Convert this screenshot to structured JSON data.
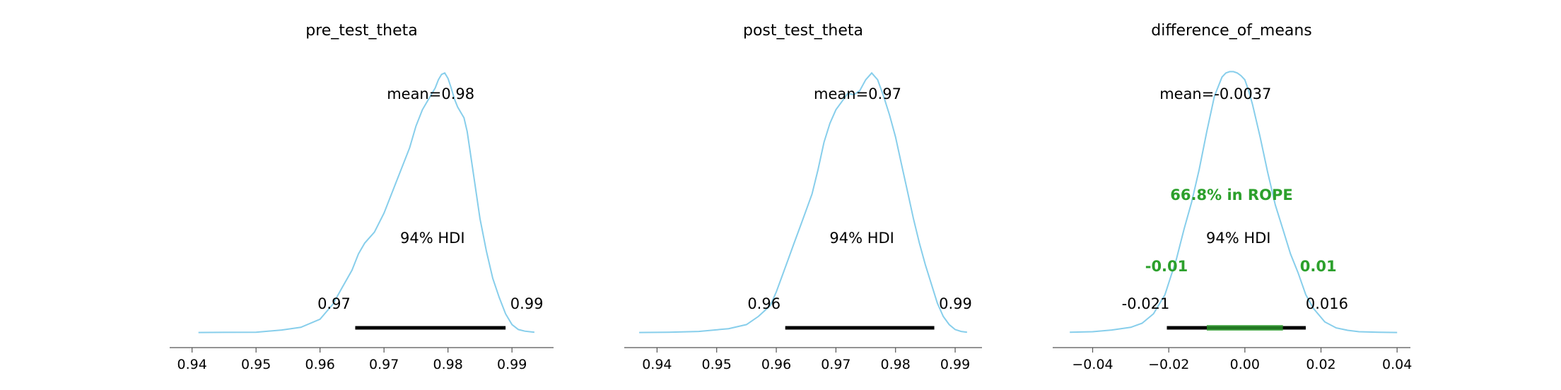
{
  "chart_data": [
    {
      "type": "area",
      "title": "pre_test_theta",
      "xlim": [
        0.9365,
        0.9965
      ],
      "ticks": [
        0.94,
        0.95,
        0.96,
        0.97,
        0.98,
        0.99
      ],
      "tick_labels": [
        "0.94",
        "0.95",
        "0.96",
        "0.97",
        "0.98",
        "0.99"
      ],
      "density": {
        "x": [
          0.941,
          0.945,
          0.95,
          0.954,
          0.957,
          0.96,
          0.962,
          0.9635,
          0.965,
          0.966,
          0.967,
          0.9685,
          0.97,
          0.972,
          0.974,
          0.975,
          0.976,
          0.977,
          0.978,
          0.9785,
          0.979,
          0.9795,
          0.98,
          0.9805,
          0.981,
          0.9815,
          0.982,
          0.9825,
          0.983,
          0.984,
          0.985,
          0.986,
          0.987,
          0.988,
          0.989,
          0.99,
          0.991,
          0.992,
          0.9935
        ],
        "y": [
          0.001,
          0.0015,
          0.002,
          0.01,
          0.02,
          0.05,
          0.105,
          0.168,
          0.23,
          0.29,
          0.33,
          0.37,
          0.44,
          0.56,
          0.68,
          0.76,
          0.82,
          0.86,
          0.9,
          0.93,
          0.95,
          0.955,
          0.935,
          0.9,
          0.86,
          0.83,
          0.81,
          0.79,
          0.74,
          0.58,
          0.42,
          0.3,
          0.2,
          0.13,
          0.07,
          0.03,
          0.012,
          0.006,
          0.002
        ]
      },
      "mean_label": "mean=0.98",
      "hdi_label": "94% HDI",
      "hdi": [
        0.9655,
        0.989
      ],
      "hdi_low_label": "0.97",
      "hdi_high_label": "0.99"
    },
    {
      "type": "area",
      "title": "post_test_theta",
      "xlim": [
        0.9345,
        0.9945
      ],
      "ticks": [
        0.94,
        0.95,
        0.96,
        0.97,
        0.98,
        0.99
      ],
      "tick_labels": [
        "0.94",
        "0.95",
        "0.96",
        "0.97",
        "0.98",
        "0.99"
      ],
      "density": {
        "x": [
          0.937,
          0.942,
          0.947,
          0.952,
          0.955,
          0.957,
          0.959,
          0.96,
          0.961,
          0.962,
          0.963,
          0.964,
          0.965,
          0.966,
          0.967,
          0.968,
          0.969,
          0.97,
          0.971,
          0.972,
          0.973,
          0.974,
          0.975,
          0.976,
          0.977,
          0.978,
          0.979,
          0.98,
          0.981,
          0.982,
          0.983,
          0.984,
          0.985,
          0.986,
          0.987,
          0.988,
          0.989,
          0.99,
          0.991,
          0.992
        ],
        "y": [
          0.001,
          0.002,
          0.005,
          0.015,
          0.03,
          0.06,
          0.1,
          0.15,
          0.21,
          0.27,
          0.33,
          0.39,
          0.45,
          0.51,
          0.6,
          0.7,
          0.77,
          0.82,
          0.85,
          0.88,
          0.875,
          0.89,
          0.93,
          0.955,
          0.93,
          0.87,
          0.8,
          0.72,
          0.62,
          0.52,
          0.42,
          0.33,
          0.25,
          0.18,
          0.11,
          0.06,
          0.03,
          0.012,
          0.005,
          0.002
        ]
      },
      "mean_label": "mean=0.97",
      "hdi_label": "94% HDI",
      "hdi": [
        0.9615,
        0.9865
      ],
      "hdi_low_label": "0.96",
      "hdi_high_label": "0.99"
    },
    {
      "type": "area",
      "title": "difference_of_means",
      "xlim": [
        -0.0505,
        0.0435
      ],
      "ticks": [
        -0.04,
        -0.02,
        0.0,
        0.02,
        0.04
      ],
      "tick_labels": [
        "−0.04",
        "−0.02",
        "0.00",
        "0.02",
        "0.04"
      ],
      "density": {
        "x": [
          -0.046,
          -0.04,
          -0.035,
          -0.03,
          -0.027,
          -0.024,
          -0.021,
          -0.018,
          -0.016,
          -0.014,
          -0.012,
          -0.01,
          -0.008,
          -0.006,
          -0.005,
          -0.004,
          -0.003,
          -0.002,
          -0.001,
          0.0,
          0.001,
          0.002,
          0.003,
          0.004,
          0.006,
          0.008,
          0.01,
          0.012,
          0.014,
          0.016,
          0.018,
          0.021,
          0.024,
          0.027,
          0.03,
          0.035,
          0.04
        ],
        "y": [
          0.002,
          0.004,
          0.01,
          0.02,
          0.035,
          0.07,
          0.14,
          0.27,
          0.38,
          0.48,
          0.6,
          0.74,
          0.87,
          0.94,
          0.955,
          0.96,
          0.96,
          0.955,
          0.945,
          0.93,
          0.89,
          0.84,
          0.78,
          0.72,
          0.59,
          0.47,
          0.38,
          0.29,
          0.22,
          0.14,
          0.09,
          0.04,
          0.018,
          0.009,
          0.004,
          0.002,
          0.001
        ]
      },
      "mean_label": "mean=-0.0037",
      "hdi_label": "94% HDI",
      "hdi": [
        -0.0205,
        0.016
      ],
      "hdi_low_label": "-0.021",
      "hdi_high_label": "0.016",
      "rope": [
        -0.01,
        0.01
      ],
      "rope_label": "66.8% in ROPE",
      "rope_low_label": "-0.01",
      "rope_high_label": "0.01"
    }
  ],
  "colors": {
    "density": "#87ceeb",
    "hdi": "#000000",
    "rope": "#2ca02c",
    "axis": "#555555",
    "text": "#000000"
  }
}
